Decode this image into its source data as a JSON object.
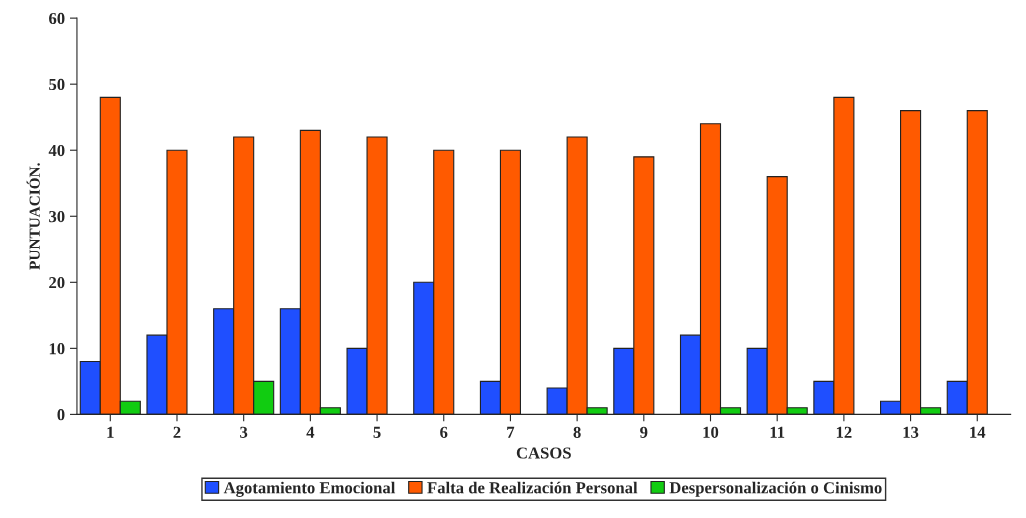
{
  "chart_data": {
    "type": "bar",
    "xlabel": "CASOS",
    "ylabel": "PUNTUACIÓN.",
    "categories": [
      "1",
      "2",
      "3",
      "4",
      "5",
      "6",
      "7",
      "8",
      "9",
      "10",
      "11",
      "12",
      "13",
      "14"
    ],
    "series": [
      {
        "name": "Agotamiento Emocional",
        "color": "#1f4fff",
        "values": [
          8,
          12,
          16,
          16,
          10,
          20,
          5,
          4,
          10,
          12,
          10,
          5,
          2,
          5
        ]
      },
      {
        "name": "Falta de Realización Personal",
        "color": "#ff5a00",
        "values": [
          48,
          40,
          42,
          43,
          42,
          40,
          40,
          42,
          39,
          44,
          36,
          48,
          46,
          46
        ]
      },
      {
        "name": "Despersonalización o Cinismo",
        "color": "#11cc11",
        "values": [
          2,
          0,
          5,
          1,
          0,
          0,
          0,
          1,
          0,
          1,
          1,
          0,
          1,
          0
        ]
      }
    ],
    "ylim": [
      0,
      60
    ],
    "yticks": [
      0,
      10,
      20,
      30,
      40,
      50,
      60
    ],
    "grid": false,
    "legend": "bottom"
  }
}
